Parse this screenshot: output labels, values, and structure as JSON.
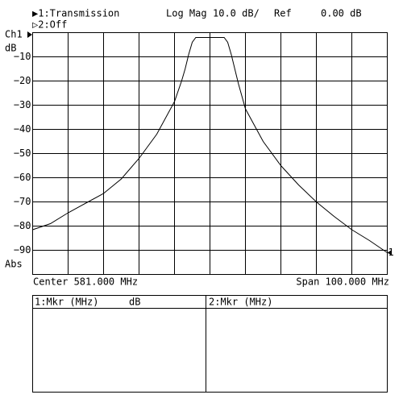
{
  "header": {
    "trace1": "▶1:Transmission",
    "format": "Log Mag",
    "scale": "10.0 dB/",
    "ref_label": "Ref",
    "ref_value": "0.00 dB",
    "trace2": "▷2:Off"
  },
  "chart_data": {
    "type": "line",
    "channel": "Ch1",
    "y_unit": "dB",
    "y_mode": "Abs",
    "center": "Center 581.000 MHz",
    "span": "Span 100.000 MHz",
    "x": [
      531,
      536,
      541,
      546,
      551,
      556,
      561,
      566,
      571,
      573,
      574,
      575,
      576,
      577,
      579,
      581,
      583,
      585,
      586,
      587,
      588,
      589,
      591,
      596,
      601,
      606,
      611,
      616,
      621,
      626,
      631
    ],
    "series": [
      {
        "color": "#000000",
        "values": [
          -81.5,
          -79,
          -74.5,
          -70.5,
          -66.5,
          -60.5,
          -52,
          -42,
          -28.5,
          -20,
          -15,
          -9,
          -4,
          -2,
          -2,
          -2,
          -2,
          -2,
          -4,
          -9,
          -15,
          -21,
          -31.5,
          -45,
          -55,
          -63,
          -70,
          -76,
          -81.5,
          -86,
          -91
        ]
      }
    ],
    "xlim": [
      531,
      631
    ],
    "ylim": [
      -100,
      0
    ],
    "yticks": [
      {
        "value": -10,
        "label": "−10"
      },
      {
        "value": -20,
        "label": "−20"
      },
      {
        "value": -30,
        "label": "−30"
      },
      {
        "value": -40,
        "label": "−40"
      },
      {
        "value": -50,
        "label": "−50"
      },
      {
        "value": -60,
        "label": "−60"
      },
      {
        "value": -70,
        "label": "−70"
      },
      {
        "value": -80,
        "label": "−80"
      },
      {
        "value": -90,
        "label": "−90"
      }
    ],
    "grid": true,
    "marker_label": "1"
  },
  "marker_table": {
    "columns": [
      {
        "title": "1:Mkr (MHz)",
        "unit": "dB"
      },
      {
        "title": "2:Mkr (MHz)"
      }
    ]
  }
}
